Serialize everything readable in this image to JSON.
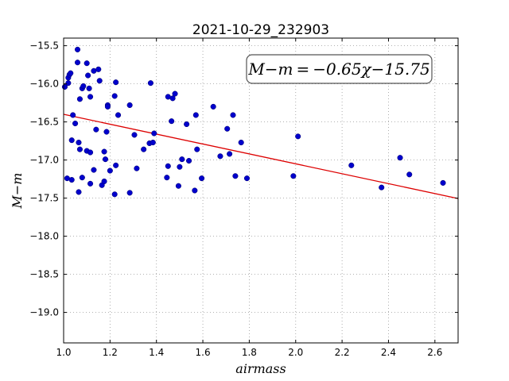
{
  "chart_data": {
    "type": "scatter",
    "title": "2021-10-29_232903",
    "xlabel": "airmass",
    "ylabel": "M−m",
    "xlim": [
      1.0,
      2.7
    ],
    "ylim": [
      -19.4,
      -15.4
    ],
    "y_inverted": true,
    "grid": true,
    "x_ticks": [
      1.0,
      1.2,
      1.4,
      1.6,
      1.8,
      2.0,
      2.2,
      2.4,
      2.6
    ],
    "x_tick_labels": [
      "1.0",
      "1.2",
      "1.4",
      "1.6",
      "1.8",
      "2.0",
      "2.2",
      "2.4",
      "2.6"
    ],
    "y_ticks": [
      -15.5,
      -16.0,
      -16.5,
      -17.0,
      -17.5,
      -18.0,
      -18.5,
      -19.0
    ],
    "y_tick_labels": [
      "−15.5",
      "−16.0",
      "−16.5",
      "−17.0",
      "−17.5",
      "−18.0",
      "−18.5",
      "−19.0"
    ],
    "annotation": "M−m = −0.65χ−15.75",
    "annotation_position": "top-right",
    "colors": {
      "points": "#0000cc",
      "fit": "#dd0000",
      "grid": "#999999"
    },
    "fit": {
      "slope": -0.65,
      "intercept": -15.75
    },
    "points": [
      {
        "x": 1.005,
        "y": -16.04
      },
      {
        "x": 1.02,
        "y": -15.92
      },
      {
        "x": 1.02,
        "y": -15.99
      },
      {
        "x": 1.025,
        "y": -15.88
      },
      {
        "x": 1.03,
        "y": -15.86
      },
      {
        "x": 1.04,
        "y": -16.41
      },
      {
        "x": 1.05,
        "y": -16.52
      },
      {
        "x": 1.06,
        "y": -15.55
      },
      {
        "x": 1.06,
        "y": -15.72
      },
      {
        "x": 1.07,
        "y": -16.2
      },
      {
        "x": 1.08,
        "y": -16.06
      },
      {
        "x": 1.085,
        "y": -16.03
      },
      {
        "x": 1.1,
        "y": -15.73
      },
      {
        "x": 1.105,
        "y": -15.89
      },
      {
        "x": 1.11,
        "y": -16.06
      },
      {
        "x": 1.115,
        "y": -16.17
      },
      {
        "x": 1.13,
        "y": -15.83
      },
      {
        "x": 1.15,
        "y": -15.81
      },
      {
        "x": 1.155,
        "y": -15.96
      },
      {
        "x": 1.19,
        "y": -16.28
      },
      {
        "x": 1.19,
        "y": -16.3
      },
      {
        "x": 1.22,
        "y": -16.16
      },
      {
        "x": 1.225,
        "y": -15.98
      },
      {
        "x": 1.235,
        "y": -16.41
      },
      {
        "x": 1.285,
        "y": -16.28
      },
      {
        "x": 1.035,
        "y": -16.74
      },
      {
        "x": 1.065,
        "y": -16.77
      },
      {
        "x": 1.07,
        "y": -16.86
      },
      {
        "x": 1.1,
        "y": -16.88
      },
      {
        "x": 1.115,
        "y": -16.9
      },
      {
        "x": 1.14,
        "y": -16.6
      },
      {
        "x": 1.175,
        "y": -16.89
      },
      {
        "x": 1.18,
        "y": -16.99
      },
      {
        "x": 1.185,
        "y": -16.63
      },
      {
        "x": 1.015,
        "y": -17.24
      },
      {
        "x": 1.035,
        "y": -17.26
      },
      {
        "x": 1.065,
        "y": -17.42
      },
      {
        "x": 1.08,
        "y": -17.23
      },
      {
        "x": 1.115,
        "y": -17.31
      },
      {
        "x": 1.13,
        "y": -17.13
      },
      {
        "x": 1.165,
        "y": -17.33
      },
      {
        "x": 1.175,
        "y": -17.28
      },
      {
        "x": 1.2,
        "y": -17.14
      },
      {
        "x": 1.22,
        "y": -17.45
      },
      {
        "x": 1.225,
        "y": -17.07
      },
      {
        "x": 1.285,
        "y": -17.43
      },
      {
        "x": 1.305,
        "y": -16.67
      },
      {
        "x": 1.315,
        "y": -17.11
      },
      {
        "x": 1.345,
        "y": -16.86
      },
      {
        "x": 1.37,
        "y": -16.78
      },
      {
        "x": 1.375,
        "y": -15.99
      },
      {
        "x": 1.385,
        "y": -16.77
      },
      {
        "x": 1.39,
        "y": -16.65
      },
      {
        "x": 1.445,
        "y": -17.23
      },
      {
        "x": 1.45,
        "y": -17.08
      },
      {
        "x": 1.45,
        "y": -16.17
      },
      {
        "x": 1.465,
        "y": -16.49
      },
      {
        "x": 1.47,
        "y": -16.19
      },
      {
        "x": 1.48,
        "y": -16.13
      },
      {
        "x": 1.495,
        "y": -17.34
      },
      {
        "x": 1.5,
        "y": -17.09
      },
      {
        "x": 1.51,
        "y": -16.99
      },
      {
        "x": 1.53,
        "y": -16.53
      },
      {
        "x": 1.54,
        "y": -17.01
      },
      {
        "x": 1.565,
        "y": -17.4
      },
      {
        "x": 1.57,
        "y": -16.41
      },
      {
        "x": 1.575,
        "y": -16.86
      },
      {
        "x": 1.595,
        "y": -17.24
      },
      {
        "x": 1.645,
        "y": -16.3
      },
      {
        "x": 1.675,
        "y": -16.95
      },
      {
        "x": 1.705,
        "y": -16.59
      },
      {
        "x": 1.715,
        "y": -16.92
      },
      {
        "x": 1.73,
        "y": -16.41
      },
      {
        "x": 1.74,
        "y": -17.21
      },
      {
        "x": 1.765,
        "y": -16.77
      },
      {
        "x": 1.79,
        "y": -17.24
      },
      {
        "x": 1.99,
        "y": -17.21
      },
      {
        "x": 2.01,
        "y": -16.69
      },
      {
        "x": 2.24,
        "y": -17.07
      },
      {
        "x": 2.37,
        "y": -17.36
      },
      {
        "x": 2.45,
        "y": -16.97
      },
      {
        "x": 2.49,
        "y": -17.19
      },
      {
        "x": 2.635,
        "y": -17.3
      }
    ]
  }
}
